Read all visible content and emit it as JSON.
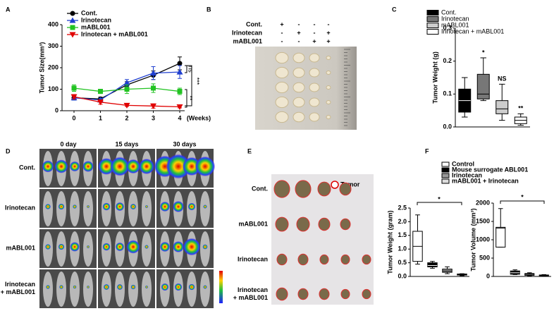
{
  "panels": [
    "A",
    "B",
    "C",
    "D",
    "E",
    "F"
  ],
  "chart_data": [
    {
      "type": "line",
      "ylabel": "Tumor Size(mm³)",
      "xlabel": "(Weeks)",
      "x": [
        0,
        1,
        2,
        3,
        4
      ],
      "xlim": [
        0,
        4
      ],
      "xticks": [
        0,
        1,
        2,
        3,
        4
      ],
      "ylim": [
        0,
        400
      ],
      "yticks": [
        0,
        100,
        200,
        300,
        400
      ],
      "series": [
        {
          "name": "Cont.",
          "color": "#000000",
          "marker": "circle",
          "values": [
            60,
            55,
            120,
            165,
            220
          ],
          "errors": [
            10,
            8,
            15,
            20,
            30
          ]
        },
        {
          "name": "Irinotecan",
          "color": "#1f3fd0",
          "marker": "triangle",
          "values": [
            60,
            50,
            130,
            175,
            180
          ],
          "errors": [
            10,
            8,
            15,
            30,
            30
          ]
        },
        {
          "name": "mABL001",
          "color": "#22c322",
          "marker": "square",
          "values": [
            105,
            90,
            100,
            105,
            90
          ],
          "errors": [
            15,
            10,
            20,
            20,
            15
          ]
        },
        {
          "name": "Irinotecan + mABL001",
          "color": "#e00000",
          "marker": "triangle-down",
          "values": [
            65,
            40,
            25,
            22,
            18
          ],
          "errors": [
            10,
            10,
            5,
            10,
            5
          ]
        }
      ],
      "annotations": [
        "ns",
        "***",
        "**"
      ]
    },
    {
      "type": "box",
      "ylabel": "Tumor Weight (g)",
      "categories": [
        "Cont.",
        "Irinotecan",
        "mABL001",
        "Irinotecan + mABL001"
      ],
      "colors": [
        "#000000",
        "#777777",
        "#cccccc",
        "#ffffff"
      ],
      "ylim": [
        0,
        0.3
      ],
      "yticks": [
        {
          "value": 0,
          "label": "0.0"
        },
        {
          "value": 0.1,
          "label": "0.1"
        },
        {
          "value": 0.2,
          "label": "0.2"
        },
        {
          "value": 0.3,
          "label": "0.3"
        }
      ],
      "boxes": [
        {
          "min": 0.03,
          "q1": 0.045,
          "median": 0.08,
          "q3": 0.115,
          "max": 0.15
        },
        {
          "min": 0.08,
          "q1": 0.085,
          "median": 0.1,
          "q3": 0.16,
          "max": 0.21
        },
        {
          "min": 0.02,
          "q1": 0.04,
          "median": 0.055,
          "q3": 0.08,
          "max": 0.13
        },
        {
          "min": 0.005,
          "q1": 0.01,
          "median": 0.02,
          "q3": 0.03,
          "max": 0.04
        }
      ],
      "annotations": [
        "*",
        "NS",
        "**"
      ]
    },
    {
      "type": "box",
      "ylabel": "Tumor Weight (gram)",
      "categories": [
        "Control",
        "Mouse surrogate ABL001",
        "Irinotecan",
        "mABL001 + Irinotecan"
      ],
      "colors": [
        "#ffffff",
        "#000000",
        "#999999",
        "#dddddd"
      ],
      "ylim": [
        0,
        2.5
      ],
      "yticks": [
        {
          "value": 0,
          "label": "0.0"
        },
        {
          "value": 0.5,
          "label": "0.5"
        },
        {
          "value": 1,
          "label": "1.0"
        },
        {
          "value": 1.5,
          "label": "1.5"
        },
        {
          "value": 2,
          "label": "2.0"
        },
        {
          "value": 2.5,
          "label": "2.5"
        }
      ],
      "boxes": [
        {
          "min": 0.45,
          "q1": 0.55,
          "median": 1.1,
          "q3": 1.65,
          "max": 2.25
        },
        {
          "min": 0.3,
          "q1": 0.35,
          "median": 0.4,
          "q3": 0.5,
          "max": 0.55
        },
        {
          "min": 0.1,
          "q1": 0.15,
          "median": 0.2,
          "q3": 0.27,
          "max": 0.35
        },
        {
          "min": 0.03,
          "q1": 0.05,
          "median": 0.07,
          "q3": 0.09,
          "max": 0.1
        }
      ],
      "annotations": [
        "*"
      ]
    },
    {
      "type": "box",
      "ylabel": "Tumor Volume (mm³)",
      "categories": [
        "Control",
        "Mouse surrogate ABL001",
        "Irinotecan",
        "mABL001 + Irinotecan"
      ],
      "colors": [
        "#ffffff",
        "#000000",
        "#999999",
        "#dddddd"
      ],
      "ylim": [
        0,
        2000
      ],
      "yticks": [
        0,
        500,
        1000,
        1500,
        2000
      ],
      "boxes": [
        {
          "min": 800,
          "q1": 800,
          "median": 1320,
          "q3": 1340,
          "max": 1850
        },
        {
          "min": 50,
          "q1": 60,
          "median": 100,
          "q3": 150,
          "max": 180
        },
        {
          "min": 20,
          "q1": 30,
          "median": 60,
          "q3": 80,
          "max": 100
        },
        {
          "min": 10,
          "q1": 20,
          "median": 30,
          "q3": 40,
          "max": 50
        }
      ],
      "annotations": [
        "*"
      ]
    }
  ],
  "photo_b": {
    "rows": [
      {
        "label": "Cont.",
        "marks": [
          "+",
          "-",
          "-",
          "-"
        ]
      },
      {
        "label": "Irinotecan",
        "marks": [
          "-",
          "+",
          "-",
          "+"
        ]
      },
      {
        "label": "mABL001",
        "marks": [
          "-",
          "-",
          "+",
          "+"
        ]
      }
    ]
  },
  "photo_d": {
    "columns": [
      "0 day",
      "15 days",
      "30 days"
    ],
    "rows": [
      [
        "Cont."
      ],
      [
        "Irinotecan"
      ],
      [
        "mABL001"
      ],
      [
        "Irinotecan",
        "+ mABL001"
      ]
    ]
  },
  "photo_e": {
    "legend": "Tumor",
    "rows": [
      [
        "Cont."
      ],
      [
        "mABL001"
      ],
      [
        "Irinotecan"
      ],
      [
        "Irinotecan",
        "+ mABL001"
      ]
    ]
  }
}
